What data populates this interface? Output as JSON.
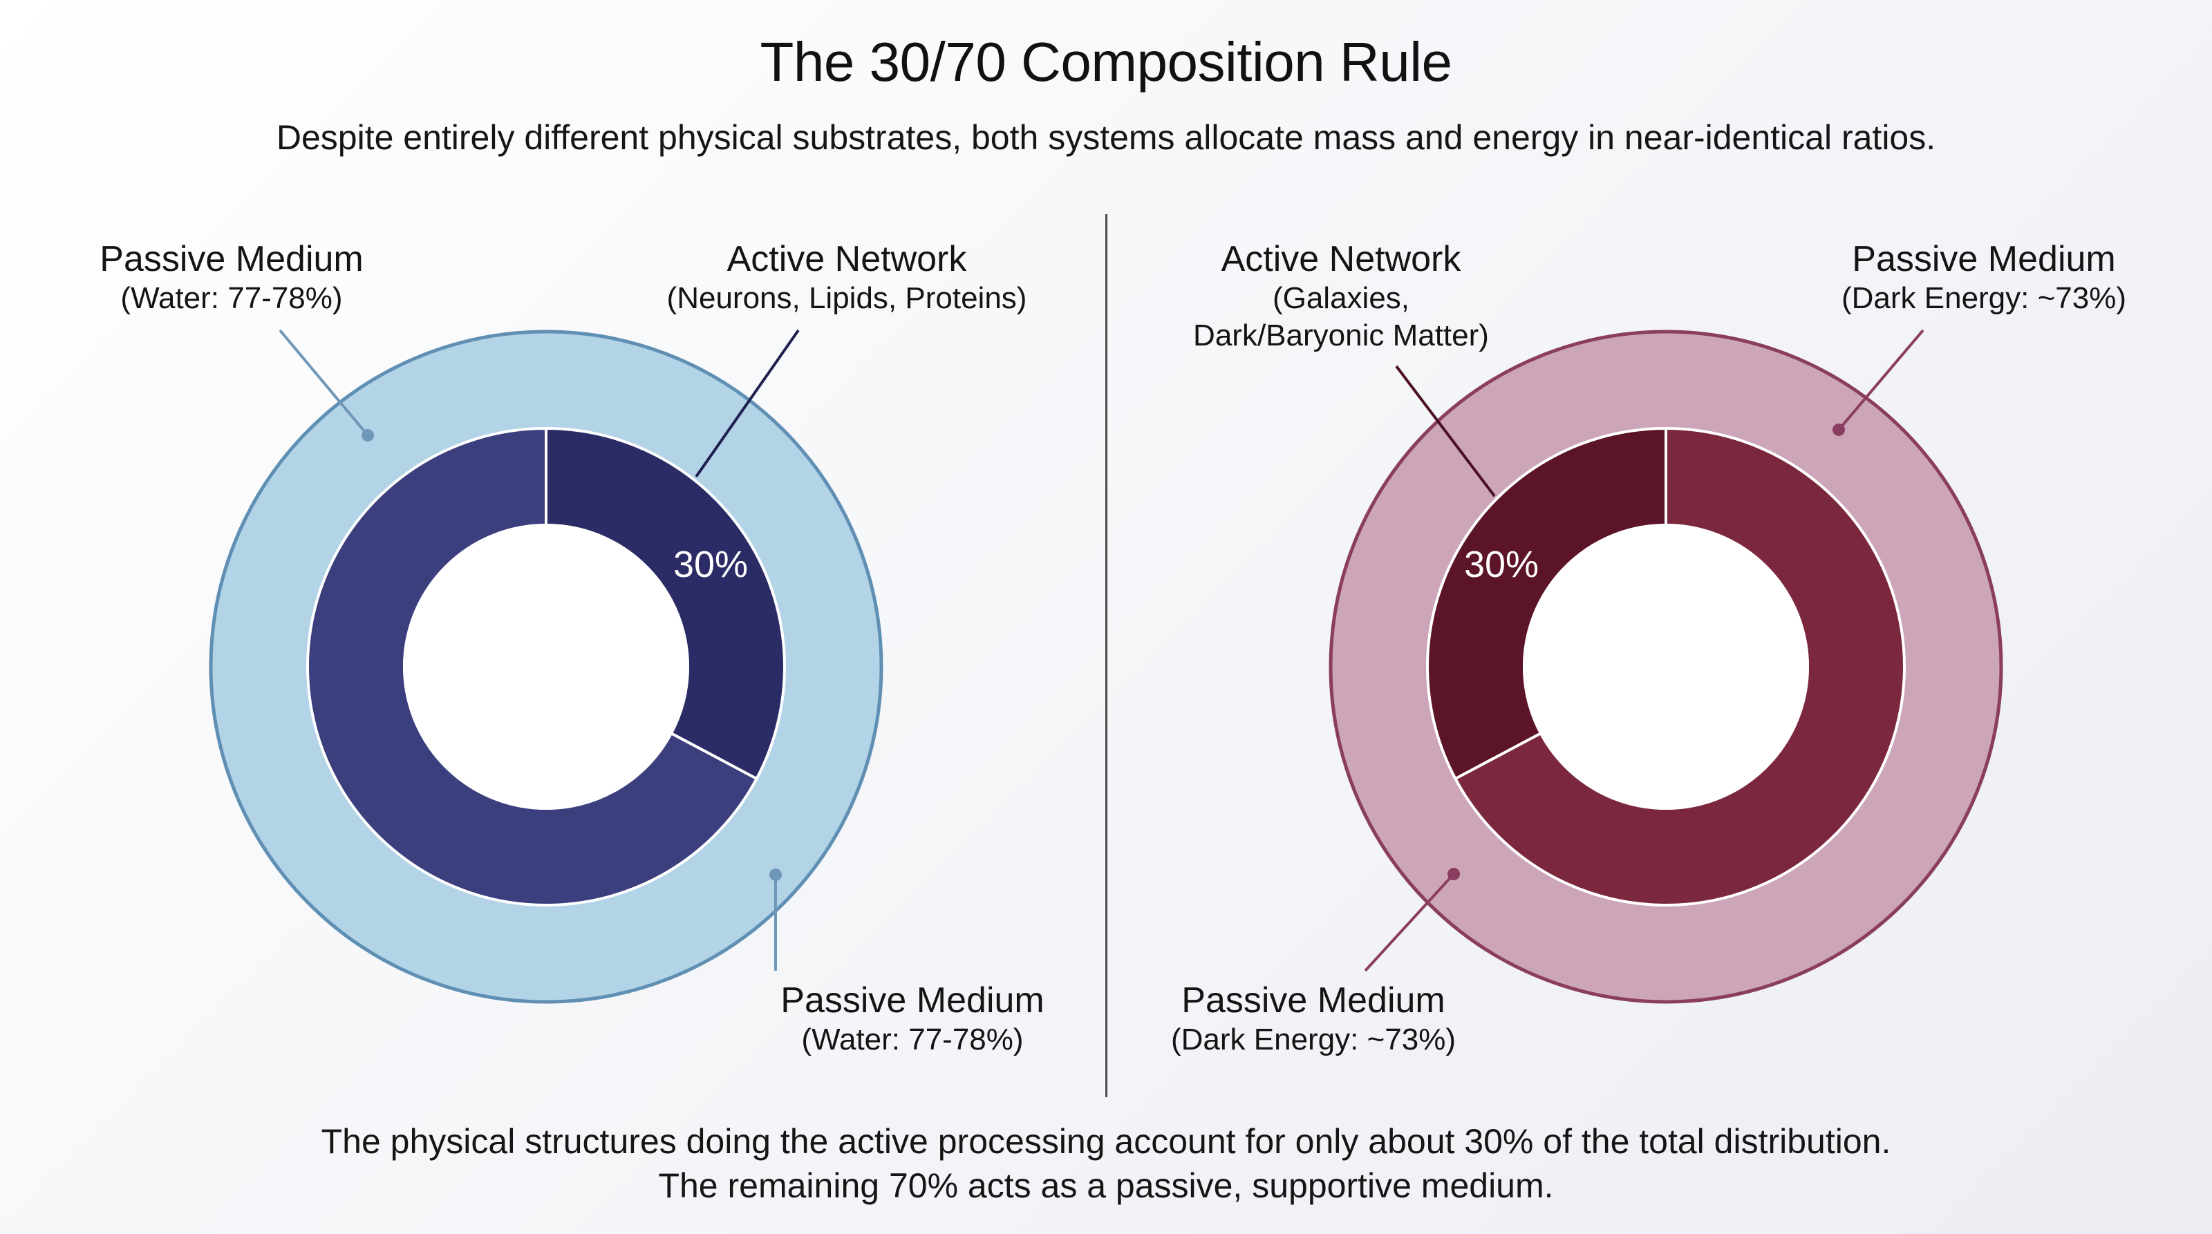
{
  "title": "The 30/70 Composition Rule",
  "subtitle": "Despite entirely different physical substrates, both systems allocate mass and energy in near-identical ratios.",
  "colors": {
    "left_outer": "#b3d3e7",
    "left_outer_stroke": "#5f8fb3",
    "left_inner_active": "#2b2c66",
    "left_inner_passive": "#3c3f7e",
    "left_leader": "#6f98b8",
    "right_outer": "#cda5b8",
    "right_outer_stroke": "#8a3d5f",
    "right_inner_active": "#5c1428",
    "right_inner_passive": "#7b283f",
    "right_leader": "#8a3d5f"
  },
  "left_diagram": {
    "center_label": "30%",
    "labels": {
      "outer_top": {
        "head": "Passive Medium",
        "sub": "(Water: 77-78%)"
      },
      "active": {
        "head": "Active Network",
        "sub": "(Neurons, Lipids, Proteins)"
      },
      "outer_bottom": {
        "head": "Passive Medium",
        "sub": "(Water: 77-78%)"
      }
    }
  },
  "right_diagram": {
    "center_label": "30%",
    "labels": {
      "active": {
        "head": "Active Network",
        "sub_line1": "(Galaxies,",
        "sub_line2": "Dark/Baryonic Matter)"
      },
      "outer_top": {
        "head": "Passive Medium",
        "sub": "(Dark Energy: ~73%)"
      },
      "outer_bottom": {
        "head": "Passive Medium",
        "sub": "(Dark Energy: ~73%)"
      }
    }
  },
  "footer": {
    "line1": "The physical structures doing the active processing account for only about 30% of the total distribution.",
    "line2": "The remaining 70% acts as a passive, supportive medium."
  }
}
